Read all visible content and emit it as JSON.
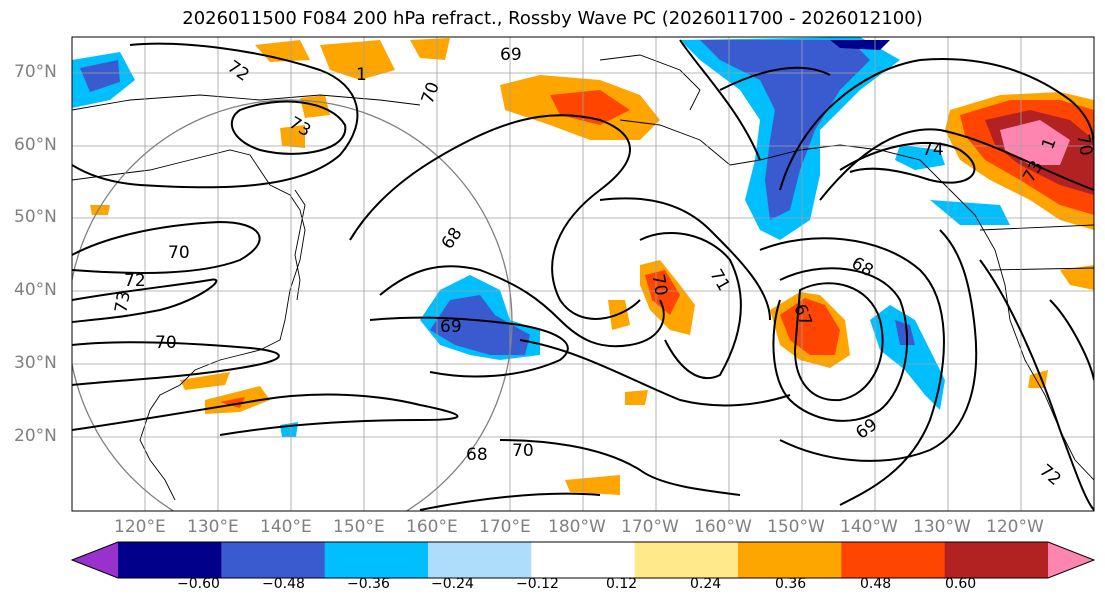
{
  "title": "2026011500 F084 200 hPa refract., Rossby Wave PC (2026011700 - 2026012100)",
  "lat_ticks": [
    "70°N",
    "60°N",
    "50°N",
    "40°N",
    "30°N",
    "20°N"
  ],
  "lon_ticks": [
    "120°E",
    "130°E",
    "140°E",
    "150°E",
    "160°E",
    "170°E",
    "180°W",
    "170°W",
    "160°W",
    "150°W",
    "140°W",
    "130°W",
    "120°W"
  ],
  "colorbar": {
    "colors": [
      "#9932CC",
      "#00008B",
      "#3A5BD0",
      "#00BFFF",
      "#ADDDFA",
      "#FFFFFF",
      "#FFE98A",
      "#FFA500",
      "#FF4500",
      "#B22222",
      "#FF85B0"
    ],
    "labels": [
      "−0.60",
      "−0.48",
      "−0.36",
      "−0.24",
      "−0.12",
      "0.12",
      "0.24",
      "0.36",
      "0.48",
      "0.60"
    ]
  },
  "contour_labels": [
    "72",
    "73",
    "1",
    "70",
    "69",
    "68",
    "70",
    "72",
    "73",
    "70",
    "68",
    "69",
    "70",
    "71",
    "67",
    "68",
    "69",
    "70",
    "74",
    "73",
    "72",
    "1",
    "70"
  ]
}
